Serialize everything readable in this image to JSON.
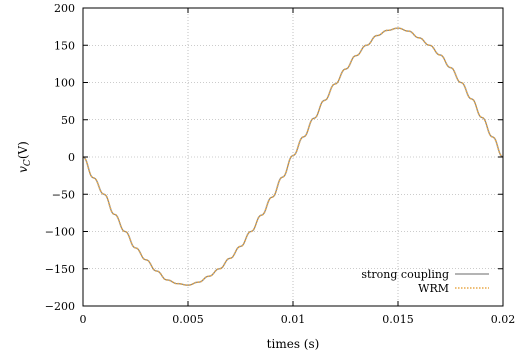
{
  "chart_data": {
    "type": "line",
    "xlabel": "times (s)",
    "ylabel": "v_C (V)",
    "ylabel_main": "v",
    "ylabel_sub": "C",
    "ylabel_unit": "(V)",
    "xlim": [
      0,
      0.02
    ],
    "ylim": [
      -200,
      200
    ],
    "xticks": [
      0,
      0.005,
      0.01,
      0.015,
      0.02
    ],
    "xtick_labels": [
      "0",
      "0.005",
      "0.01",
      "0.015",
      "0.02"
    ],
    "yticks": [
      -200,
      -150,
      -100,
      -50,
      0,
      50,
      100,
      150,
      200
    ],
    "ytick_labels": [
      "−200",
      "−150",
      "−100",
      "−50",
      "0",
      "50",
      "100",
      "150",
      "200"
    ],
    "grid": true,
    "legend_position": "bottom-right",
    "series": [
      {
        "name": "strong coupling",
        "color": "#888888",
        "style": "solid",
        "x": [
          0,
          0.0005,
          0.001,
          0.0015,
          0.002,
          0.0025,
          0.003,
          0.0035,
          0.004,
          0.0045,
          0.005,
          0.0055,
          0.006,
          0.0065,
          0.007,
          0.0075,
          0.008,
          0.0085,
          0.009,
          0.0095,
          0.01,
          0.0105,
          0.011,
          0.0115,
          0.012,
          0.0125,
          0.013,
          0.0135,
          0.014,
          0.0145,
          0.015,
          0.0155,
          0.016,
          0.0165,
          0.017,
          0.0175,
          0.018,
          0.0185,
          0.019,
          0.0195,
          0.02
        ],
        "y": [
          0,
          -28,
          -50,
          -77,
          -100,
          -122,
          -138,
          -153,
          -165,
          -170,
          -172,
          -168,
          -160,
          -150,
          -136,
          -120,
          -100,
          -78,
          -54,
          -27,
          2,
          27,
          52,
          76,
          98,
          118,
          136,
          150,
          163,
          170,
          173,
          169,
          160,
          150,
          137,
          120,
          100,
          78,
          53,
          27,
          0
        ]
      },
      {
        "name": "WRM",
        "color": "#e8a848",
        "style": "dotted",
        "x": [
          0,
          0.0005,
          0.001,
          0.0015,
          0.002,
          0.0025,
          0.003,
          0.0035,
          0.004,
          0.0045,
          0.005,
          0.0055,
          0.006,
          0.0065,
          0.007,
          0.0075,
          0.008,
          0.0085,
          0.009,
          0.0095,
          0.01,
          0.0105,
          0.011,
          0.0115,
          0.012,
          0.0125,
          0.013,
          0.0135,
          0.014,
          0.0145,
          0.015,
          0.0155,
          0.016,
          0.0165,
          0.017,
          0.0175,
          0.018,
          0.0185,
          0.019,
          0.0195,
          0.02
        ],
        "y": [
          0,
          -28,
          -50,
          -77,
          -100,
          -122,
          -138,
          -153,
          -165,
          -170,
          -172,
          -168,
          -160,
          -150,
          -136,
          -120,
          -100,
          -78,
          -54,
          -27,
          2,
          27,
          52,
          76,
          98,
          118,
          136,
          150,
          163,
          170,
          173,
          169,
          160,
          150,
          137,
          120,
          100,
          78,
          53,
          27,
          0
        ]
      }
    ]
  }
}
